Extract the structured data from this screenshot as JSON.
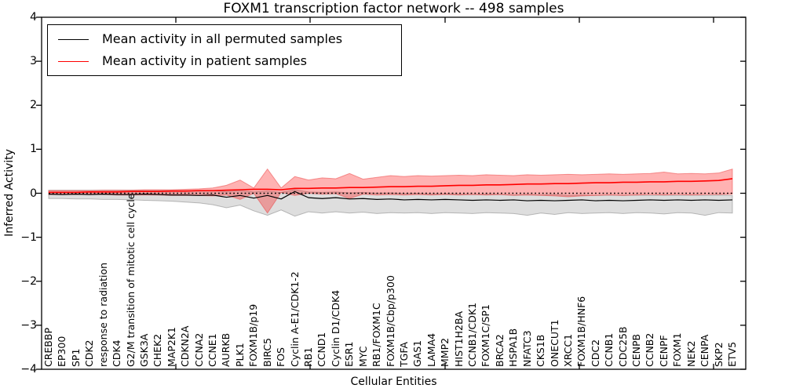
{
  "figure": {
    "title": "FOXM1 transcription factor network -- 498 samples"
  },
  "axes": {
    "ylabel": "Inferred Activity",
    "xlabel": "Cellular Entities",
    "y_ticks": [
      4,
      3,
      2,
      1,
      0,
      -1,
      -2,
      -3,
      -4
    ],
    "ylim": [
      -4,
      4
    ]
  },
  "legend": {
    "position": "upper left",
    "entries": [
      {
        "label": "Mean activity in all permuted samples",
        "color": "#000000"
      },
      {
        "label": "Mean activity in patient samples",
        "color": "#ff0000"
      }
    ]
  },
  "colors": {
    "permuted_line": "#000000",
    "patient_line": "#ff0000",
    "permuted_band": "rgba(0,0,0,0.13)",
    "patient_band": "rgba(255,0,0,0.30)",
    "frame": "#000000"
  },
  "chart_data": {
    "type": "line",
    "title": "FOXM1 transcription factor network -- 498 samples",
    "xlabel": "Cellular Entities",
    "ylabel": "Inferred Activity",
    "ylim": [
      -4,
      4
    ],
    "grid": false,
    "legend_position": "upper left",
    "categories": [
      "CREBBP",
      "EP300",
      "SP1",
      "CDK2",
      "response to radiation",
      "CDK4",
      "G2/M transition of mitotic cell cycle",
      "GSK3A",
      "CHEK2",
      "MAP2K1",
      "CDKN2A",
      "CCNA2",
      "CCNE1",
      "AURKB",
      "PLK1",
      "FOXM1B/p19",
      "BIRC5",
      "FOS",
      "Cyclin A-E1/CDK1-2",
      "RB1",
      "CCND1",
      "Cyclin D1/CDK4",
      "ESR1",
      "MYC",
      "RB1/FOXM1C",
      "FOXM1B/Cbp/p300",
      "TGFA",
      "GAS1",
      "LAMA4",
      "MMP2",
      "HIST1H2BA",
      "CCNB1/CDK1",
      "FOXM1C/SP1",
      "BRCA2",
      "HSPA1B",
      "NFATC3",
      "CKS1B",
      "ONECUT1",
      "XRCC1",
      "FOXM1B/HNF6",
      "CDC2",
      "CCNB1",
      "CDC25B",
      "CENPB",
      "CCNB2",
      "CENPF",
      "FOXM1",
      "NEK2",
      "CENPA",
      "SKP2",
      "ETV5"
    ],
    "series": [
      {
        "name": "Mean activity in all permuted samples",
        "color": "#000000",
        "values": [
          -0.02,
          -0.03,
          -0.02,
          -0.03,
          -0.02,
          -0.03,
          -0.03,
          -0.02,
          -0.03,
          -0.04,
          -0.04,
          -0.05,
          -0.04,
          -0.09,
          -0.05,
          -0.11,
          -0.05,
          -0.13,
          0.04,
          -0.1,
          -0.12,
          -0.1,
          -0.13,
          -0.12,
          -0.14,
          -0.13,
          -0.15,
          -0.14,
          -0.15,
          -0.14,
          -0.15,
          -0.16,
          -0.15,
          -0.16,
          -0.15,
          -0.17,
          -0.16,
          -0.17,
          -0.16,
          -0.15,
          -0.17,
          -0.16,
          -0.17,
          -0.16,
          -0.15,
          -0.16,
          -0.15,
          -0.16,
          -0.15,
          -0.16,
          -0.15
        ]
      },
      {
        "name": "Mean activity in patient samples",
        "color": "#ff0000",
        "values": [
          0.02,
          0.02,
          0.02,
          0.03,
          0.03,
          0.03,
          0.04,
          0.04,
          0.04,
          0.05,
          0.05,
          0.06,
          0.06,
          0.07,
          0.08,
          0.09,
          0.09,
          0.08,
          0.11,
          0.11,
          0.12,
          0.12,
          0.13,
          0.13,
          0.14,
          0.15,
          0.15,
          0.16,
          0.16,
          0.17,
          0.18,
          0.18,
          0.19,
          0.19,
          0.2,
          0.21,
          0.21,
          0.22,
          0.22,
          0.23,
          0.24,
          0.24,
          0.25,
          0.25,
          0.26,
          0.26,
          0.27,
          0.27,
          0.28,
          0.29,
          0.33
        ]
      }
    ],
    "bands": [
      {
        "name": "permuted-samples-range",
        "fill": "rgba(0,0,0,0.13)",
        "edge": "rgba(110,110,110,0.45)",
        "upper": [
          0.07,
          0.07,
          0.07,
          0.07,
          0.07,
          0.07,
          0.07,
          0.06,
          0.06,
          0.06,
          0.06,
          0.05,
          0.06,
          0.04,
          0.06,
          0.03,
          0.05,
          0.02,
          0.08,
          0.03,
          0.02,
          0.03,
          0.01,
          0.02,
          0.0,
          0.01,
          -0.01,
          0.0,
          -0.02,
          -0.01,
          -0.02,
          -0.03,
          -0.02,
          -0.03,
          -0.04,
          -0.03,
          -0.04,
          -0.03,
          -0.05,
          -0.04,
          -0.05,
          -0.04,
          -0.05,
          -0.04,
          -0.05,
          -0.04,
          -0.05,
          -0.04,
          -0.05,
          -0.04,
          -0.05
        ],
        "lower": [
          -0.12,
          -0.12,
          -0.13,
          -0.13,
          -0.14,
          -0.14,
          -0.15,
          -0.16,
          -0.17,
          -0.18,
          -0.2,
          -0.22,
          -0.26,
          -0.33,
          -0.27,
          -0.4,
          -0.5,
          -0.38,
          -0.52,
          -0.42,
          -0.45,
          -0.42,
          -0.45,
          -0.43,
          -0.46,
          -0.44,
          -0.45,
          -0.44,
          -0.46,
          -0.44,
          -0.45,
          -0.46,
          -0.44,
          -0.45,
          -0.46,
          -0.5,
          -0.45,
          -0.48,
          -0.44,
          -0.46,
          -0.45,
          -0.44,
          -0.46,
          -0.44,
          -0.45,
          -0.47,
          -0.44,
          -0.45,
          -0.5,
          -0.44,
          -0.45
        ]
      },
      {
        "name": "patient-samples-range",
        "fill": "rgba(255,0,0,0.30)",
        "edge": "rgba(235,60,60,0.50)",
        "upper": [
          0.06,
          0.06,
          0.06,
          0.06,
          0.07,
          0.07,
          0.07,
          0.08,
          0.08,
          0.08,
          0.09,
          0.1,
          0.12,
          0.18,
          0.3,
          0.12,
          0.55,
          0.12,
          0.38,
          0.3,
          0.35,
          0.33,
          0.45,
          0.32,
          0.36,
          0.4,
          0.38,
          0.4,
          0.39,
          0.4,
          0.41,
          0.4,
          0.42,
          0.41,
          0.4,
          0.42,
          0.41,
          0.42,
          0.43,
          0.42,
          0.43,
          0.44,
          0.43,
          0.44,
          0.45,
          0.48,
          0.44,
          0.45,
          0.44,
          0.46,
          0.55
        ],
        "lower": [
          -0.03,
          -0.03,
          -0.03,
          -0.03,
          -0.03,
          -0.04,
          -0.04,
          -0.04,
          -0.04,
          -0.05,
          -0.05,
          -0.05,
          -0.06,
          -0.04,
          -0.14,
          0.0,
          -0.45,
          0.02,
          -0.05,
          0.0,
          -0.02,
          -0.01,
          -0.12,
          -0.02,
          -0.04,
          -0.03,
          -0.04,
          -0.03,
          -0.04,
          -0.03,
          -0.04,
          -0.03,
          -0.04,
          -0.03,
          -0.05,
          -0.04,
          -0.05,
          -0.06,
          -0.08,
          -0.06,
          -0.05,
          -0.04,
          -0.05,
          -0.04,
          -0.03,
          -0.04,
          -0.03,
          -0.04,
          -0.03,
          -0.03,
          -0.02
        ]
      }
    ],
    "reference_line": {
      "y": 0,
      "style": "dotted",
      "color": "#000000"
    }
  }
}
